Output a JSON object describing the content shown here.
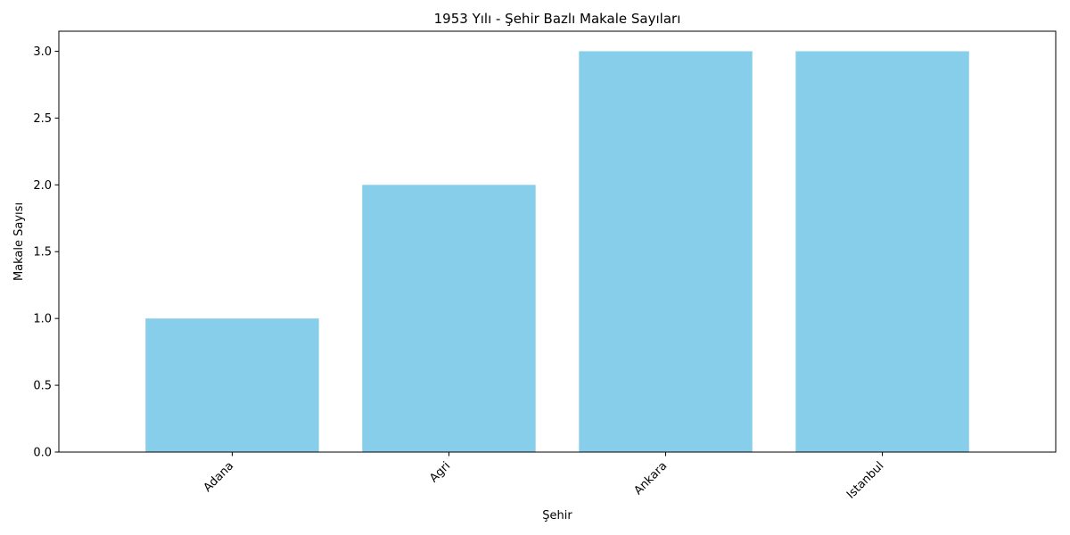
{
  "chart_data": {
    "type": "bar",
    "title": "1953 Yılı - Şehir Bazlı Makale Sayıları",
    "xlabel": "Şehir",
    "ylabel": "Makale Sayısı",
    "categories": [
      "Adana",
      "Agri",
      "Ankara",
      "Istanbul"
    ],
    "values": [
      1,
      2,
      3,
      3
    ],
    "ylim": [
      0,
      3.15
    ],
    "yticks": [
      0.0,
      0.5,
      1.0,
      1.5,
      2.0,
      2.5,
      3.0
    ],
    "ytick_labels": [
      "0.0",
      "0.5",
      "1.0",
      "1.5",
      "2.0",
      "2.5",
      "3.0"
    ],
    "bar_color": "#87ceeb",
    "grid": false,
    "legend": "none",
    "xtick_rotation": -45
  }
}
